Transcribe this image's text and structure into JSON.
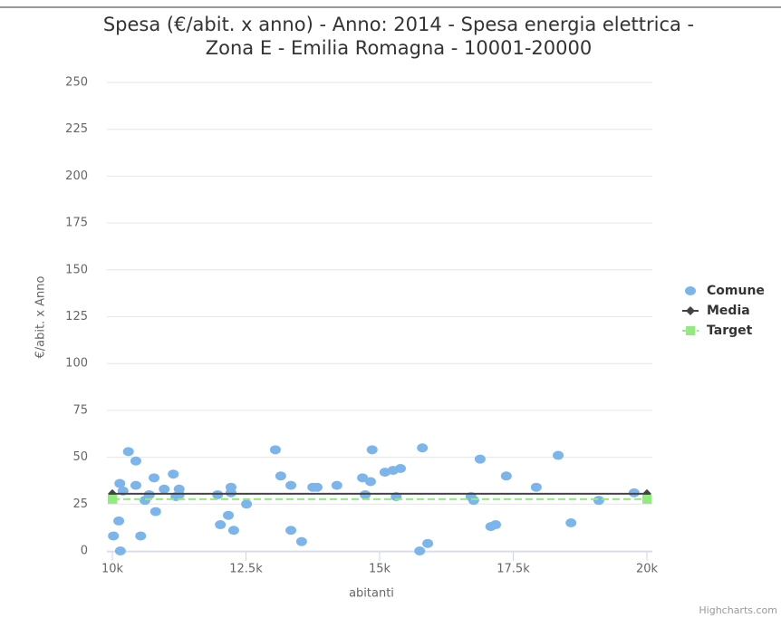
{
  "chart_data": {
    "type": "scatter",
    "title": "Spesa (€/abit. x anno) - Anno: 2014 - Spesa energia elettrica - Zona E - Emilia Romagna - 10001-20000",
    "x_label": "abitanti",
    "y_label": "€/abit. x Anno",
    "credits": "Highcharts.com",
    "xlim": [
      10000,
      20000
    ],
    "xticks": [
      {
        "value": 10000,
        "label": "10k"
      },
      {
        "value": 12500,
        "label": "12.5k"
      },
      {
        "value": 15000,
        "label": "15k"
      },
      {
        "value": 17500,
        "label": "17.5k"
      },
      {
        "value": 20000,
        "label": "20k"
      }
    ],
    "ylim": [
      0,
      250
    ],
    "yticks": [
      0,
      25,
      50,
      75,
      100,
      125,
      150,
      175,
      200,
      225,
      250
    ],
    "grid": true,
    "legend": "right",
    "series": [
      {
        "name": "Comune",
        "type": "scatter",
        "color": "#7cb5ec",
        "x": [
          10020,
          10120,
          10140,
          10150,
          10200,
          10300,
          10440,
          10440,
          10530,
          10610,
          10690,
          10780,
          10810,
          10970,
          11140,
          11190,
          11250,
          11250,
          11970,
          12020,
          12170,
          12220,
          12220,
          12270,
          12510,
          13050,
          13150,
          13340,
          13340,
          13540,
          13750,
          13830,
          14200,
          14680,
          14730,
          14830,
          14860,
          15100,
          15250,
          15310,
          15390,
          15750,
          15800,
          15900,
          16710,
          16760,
          16880,
          17080,
          17170,
          17370,
          17930,
          18340,
          18580,
          19100,
          19760
        ],
        "values": [
          8,
          16,
          36,
          0,
          32,
          53,
          48,
          35,
          8,
          27,
          30,
          39,
          21,
          33,
          41,
          29,
          33,
          30,
          30,
          14,
          19,
          34,
          31,
          11,
          25,
          54,
          40,
          35,
          11,
          5,
          34,
          34,
          35,
          39,
          30,
          37,
          54,
          42,
          43,
          29,
          44,
          0,
          55,
          4,
          29,
          27,
          49,
          13,
          14,
          40,
          34,
          51,
          15,
          27,
          31
        ]
      },
      {
        "name": "Media",
        "type": "line",
        "color": "#434348",
        "marker": "diamond",
        "dashed": false,
        "x": [
          10000,
          20000
        ],
        "values": [
          30.5,
          30.5
        ]
      },
      {
        "name": "Target",
        "type": "line",
        "color": "#90ed7d",
        "marker": "square",
        "dashed": true,
        "x": [
          10000,
          20000
        ],
        "values": [
          27.6,
          27.6
        ]
      }
    ]
  }
}
